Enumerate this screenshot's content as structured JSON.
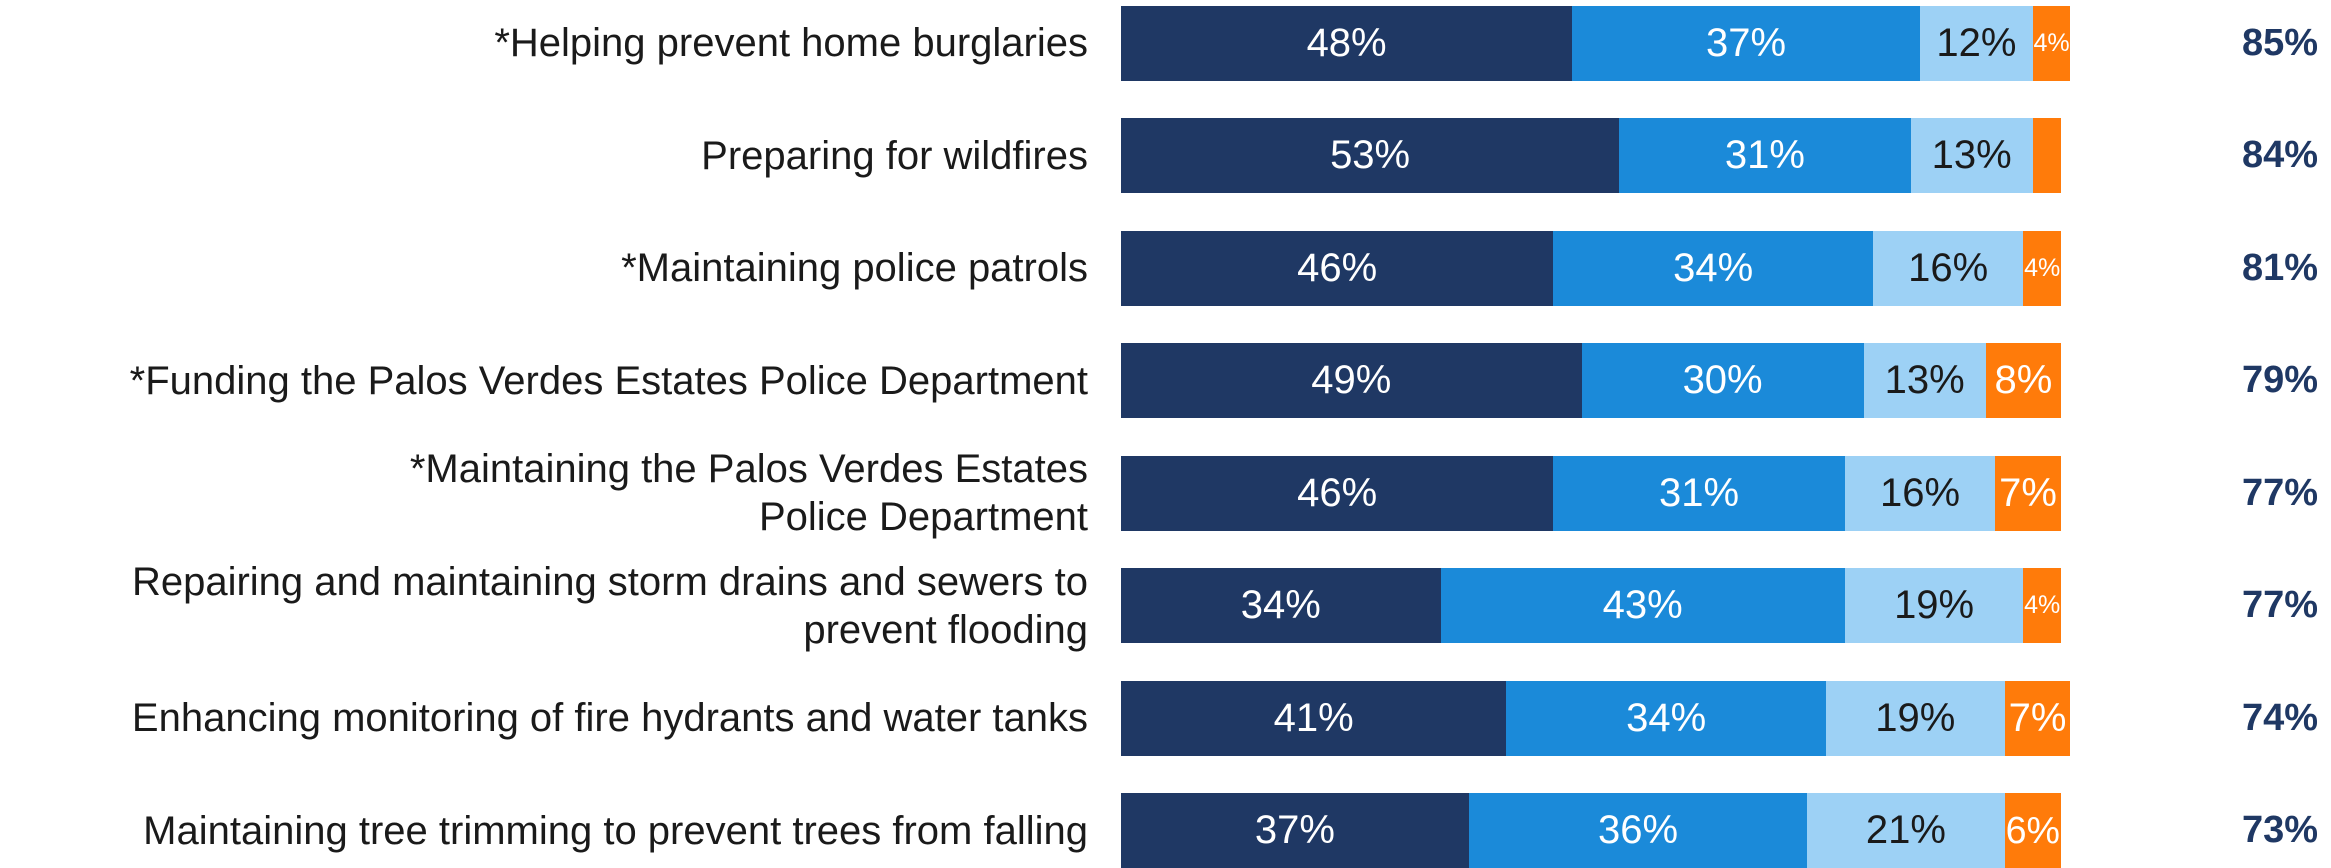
{
  "chart_data": {
    "type": "stacked-bar-horizontal",
    "categories": [
      "*Helping prevent home burglaries",
      "Preparing for wildfires",
      "*Maintaining police patrols",
      "*Funding the Palos Verdes Estates Police Department",
      "*Maintaining the Palos Verdes Estates\nPolice Department",
      "Repairing and maintaining storm drains and sewers to\nprevent flooding",
      "Enhancing monitoring of fire hydrants and water tanks",
      "Maintaining tree trimming to prevent trees from falling"
    ],
    "xlim": [
      0,
      100
    ],
    "series": [
      {
        "color": "#1f3864",
        "label_color": "#ffffff",
        "values": [
          48,
          53,
          46,
          49,
          46,
          34,
          41,
          37
        ],
        "value_labels": [
          "48%",
          "53%",
          "46%",
          "49%",
          "46%",
          "34%",
          "41%",
          "37%"
        ]
      },
      {
        "color": "#1b8ad9",
        "label_color": "#ffffff",
        "values": [
          37,
          31,
          34,
          30,
          31,
          43,
          34,
          36
        ],
        "value_labels": [
          "37%",
          "31%",
          "34%",
          "30%",
          "31%",
          "43%",
          "34%",
          "36%"
        ]
      },
      {
        "color": "#9dd1f5",
        "label_color": "#1a1a1a",
        "values": [
          12,
          13,
          16,
          13,
          16,
          19,
          19,
          21
        ],
        "value_labels": [
          "12%",
          "13%",
          "16%",
          "13%",
          "16%",
          "19%",
          "19%",
          "21%"
        ]
      },
      {
        "color": "#ff7b0a",
        "label_color": "#ffffff",
        "values": [
          4,
          3,
          4,
          8,
          7,
          4,
          7,
          6
        ],
        "value_labels": [
          "4%",
          null,
          "4%",
          "8%",
          "7%",
          "4%",
          "7%",
          "6%"
        ]
      }
    ],
    "totals": {
      "color": "#1f3864",
      "values": [
        85,
        84,
        81,
        79,
        77,
        77,
        74,
        73
      ],
      "value_labels": [
        "85%",
        "84%",
        "81%",
        "79%",
        "77%",
        "77%",
        "74%",
        "73%"
      ]
    }
  }
}
